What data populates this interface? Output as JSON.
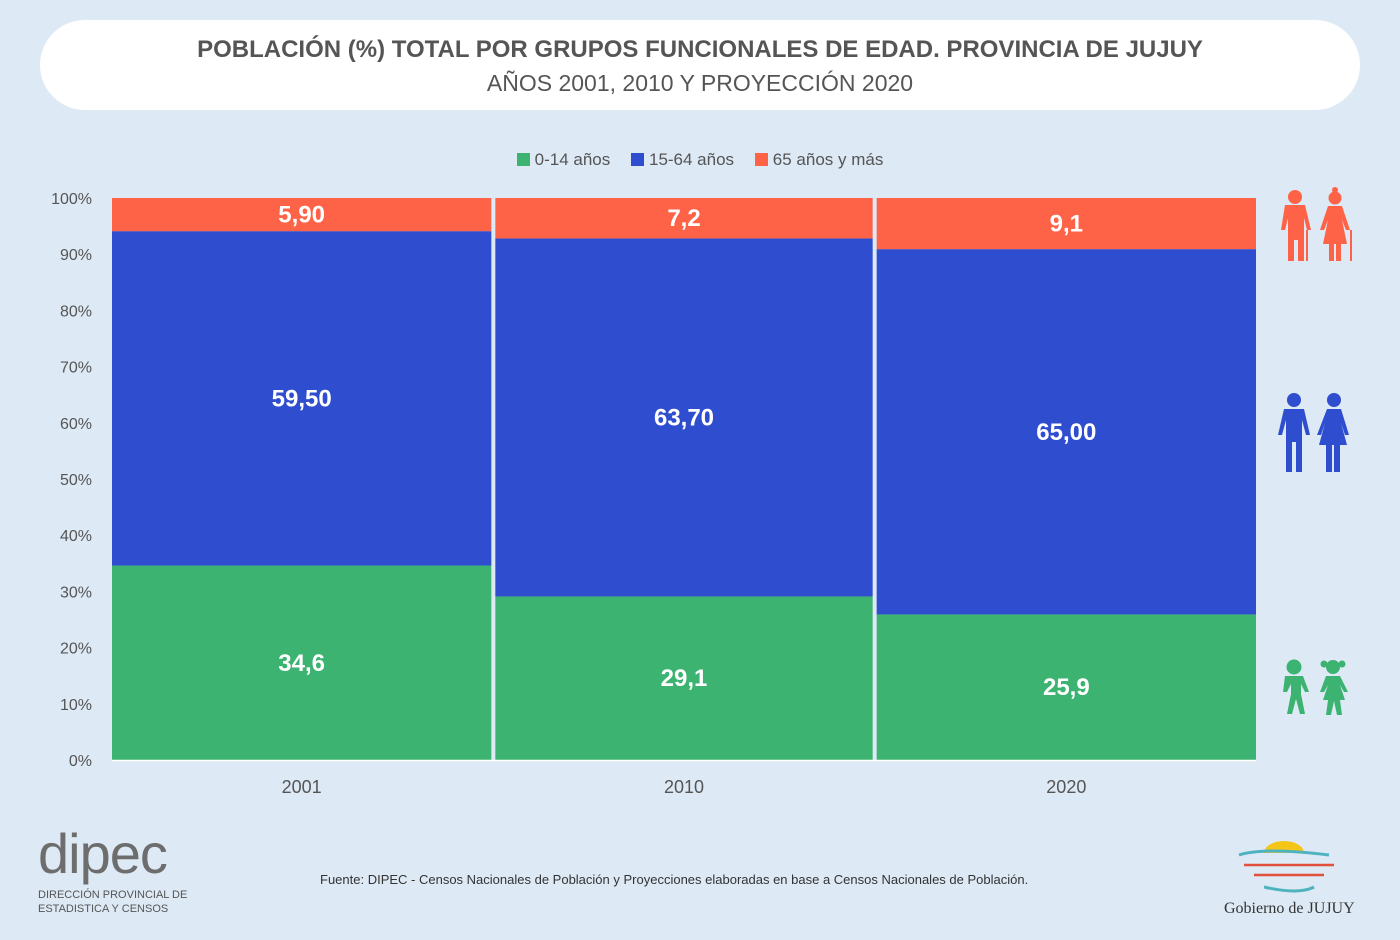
{
  "chart_data": {
    "type": "bar",
    "stacked": true,
    "title": "POBLACIÓN (%) TOTAL POR GRUPOS FUNCIONALES DE EDAD. PROVINCIA DE JUJUY",
    "subtitle": "AÑOS 2001, 2010 Y PROYECCIÓN 2020",
    "categories": [
      "2001",
      "2010",
      "2020"
    ],
    "series": [
      {
        "name": "0-14 años",
        "color": "#3cb371",
        "values": [
          34.6,
          29.1,
          25.9
        ],
        "labels": [
          "34,6",
          "29,1",
          "25,9"
        ]
      },
      {
        "name": "15-64 años",
        "color": "#2f4ecf",
        "values": [
          59.5,
          63.7,
          65.0
        ],
        "labels": [
          "59,50",
          "63,70",
          "65,00"
        ]
      },
      {
        "name": "65 años y más",
        "color": "#ff6347",
        "values": [
          5.9,
          7.2,
          9.1
        ],
        "labels": [
          "5,90",
          "7,2",
          "9,1"
        ]
      }
    ],
    "yticks": [
      "0%",
      "10%",
      "20%",
      "30%",
      "40%",
      "50%",
      "60%",
      "70%",
      "80%",
      "90%",
      "100%"
    ],
    "ylim": [
      0,
      100
    ],
    "legend": "top-center",
    "grid": false
  },
  "source": "Fuente: DIPEC - Censos Nacionales de Población y Proyecciones elaboradas en base a Censos Nacionales de Población.",
  "dipec": {
    "logo": "dipec",
    "line1": "DIRECCIÓN PROVINCIAL DE",
    "line2": "ESTADISTICA Y CENSOS"
  },
  "gobierno": "Gobierno de JUJUY"
}
